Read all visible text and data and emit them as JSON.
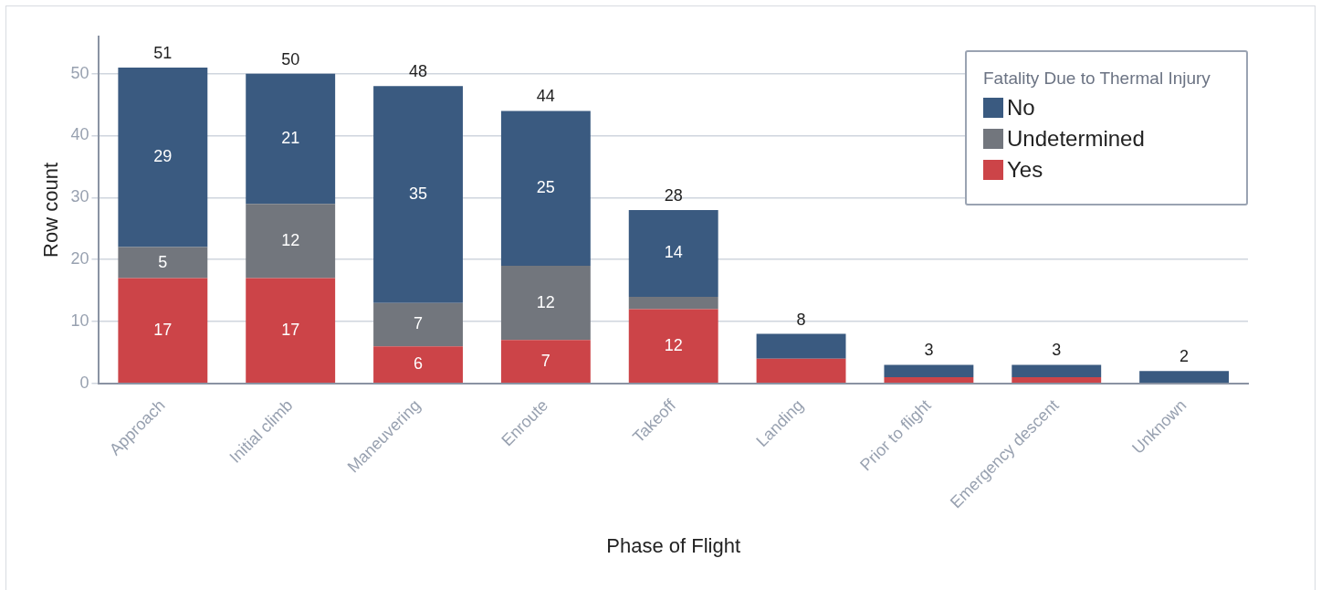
{
  "chart_data": {
    "type": "bar",
    "stacked": true,
    "xlabel": "Phase of Flight",
    "ylabel": "Row count",
    "legend_title": "Fatality Due to Thermal Injury",
    "legend": "top right",
    "grid": "y",
    "categories": [
      "Approach",
      "Initial climb",
      "Maneuvering",
      "Enroute",
      "Takeoff",
      "Landing",
      "Prior to flight",
      "Emergency descent",
      "Unknown"
    ],
    "series": [
      {
        "name": "Yes",
        "color": "#cc4448",
        "values": [
          17,
          17,
          6,
          7,
          12,
          4,
          1,
          1,
          0
        ],
        "value_labels": [
          "17",
          "17",
          "6",
          "7",
          "12",
          null,
          null,
          null,
          null
        ]
      },
      {
        "name": "Undetermined",
        "color": "#72767d",
        "values": [
          5,
          12,
          7,
          12,
          2,
          0,
          0,
          0,
          0
        ],
        "value_labels": [
          "5",
          "12",
          "7",
          "12",
          null,
          null,
          null,
          null,
          null
        ]
      },
      {
        "name": "No",
        "color": "#3a5a80",
        "values": [
          29,
          21,
          35,
          25,
          14,
          4,
          2,
          2,
          2
        ],
        "value_labels": [
          "29",
          "21",
          "35",
          "25",
          "14",
          null,
          null,
          null,
          null
        ]
      }
    ],
    "totals": [
      "51",
      "50",
      "48",
      "44",
      "28",
      "8",
      "3",
      "3",
      "2"
    ],
    "ylim": [
      0,
      56
    ],
    "yticks": [
      0,
      10,
      20,
      30,
      40,
      50
    ]
  }
}
